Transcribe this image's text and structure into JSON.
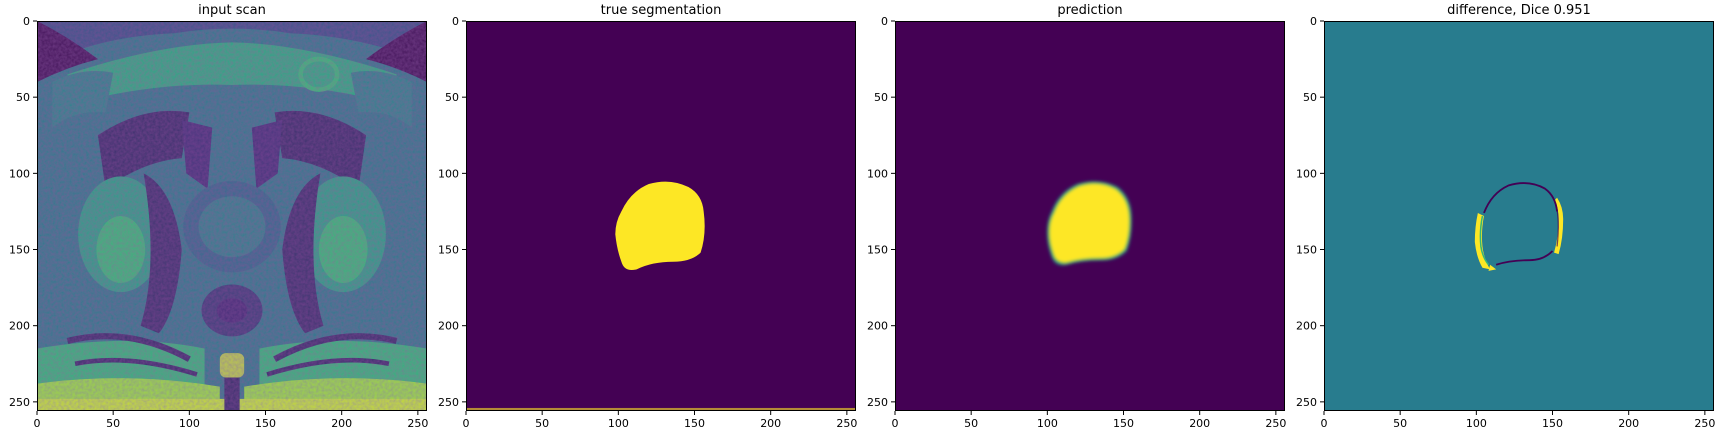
{
  "figure": {
    "colormap": "viridis",
    "colors": {
      "viridis_dark": "#440154",
      "viridis_mid": "#21918c",
      "viridis_yellow": "#fde725",
      "axis": "#000000",
      "background": "#ffffff"
    }
  },
  "chart_data": [
    {
      "type": "heatmap",
      "title": "input scan",
      "xlabel": "",
      "ylabel": "",
      "xlim": [
        0,
        256
      ],
      "ylim": [
        256,
        0
      ],
      "xticks": [
        0,
        50,
        100,
        150,
        200,
        250
      ],
      "yticks": [
        0,
        50,
        100,
        150,
        200,
        250
      ],
      "grid": false,
      "content": "axial pelvic MRI slice"
    },
    {
      "type": "heatmap",
      "title": "true segmentation",
      "xlabel": "",
      "ylabel": "",
      "xlim": [
        0,
        256
      ],
      "ylim": [
        256,
        0
      ],
      "xticks": [
        0,
        50,
        100,
        150,
        200,
        250
      ],
      "yticks": [
        0,
        50,
        100,
        150,
        200,
        250
      ],
      "grid": false,
      "region": {
        "x_range": [
          98,
          157
        ],
        "y_range": [
          105,
          163
        ],
        "value": 1
      }
    },
    {
      "type": "heatmap",
      "title": "prediction",
      "xlabel": "",
      "ylabel": "",
      "xlim": [
        0,
        256
      ],
      "ylim": [
        256,
        0
      ],
      "xticks": [
        0,
        50,
        100,
        150,
        200,
        250
      ],
      "yticks": [
        0,
        50,
        100,
        150,
        200,
        250
      ],
      "grid": false,
      "region": {
        "x_range": [
          100,
          155
        ],
        "y_range": [
          105,
          160
        ],
        "value": 1
      }
    },
    {
      "type": "heatmap",
      "title": "difference, Dice 0.951",
      "xlabel": "",
      "ylabel": "",
      "xlim": [
        0,
        256
      ],
      "ylim": [
        256,
        0
      ],
      "xticks": [
        0,
        50,
        100,
        150,
        200,
        250
      ],
      "yticks": [
        0,
        50,
        100,
        150,
        200,
        250
      ],
      "grid": false,
      "dice": 0.951
    }
  ]
}
